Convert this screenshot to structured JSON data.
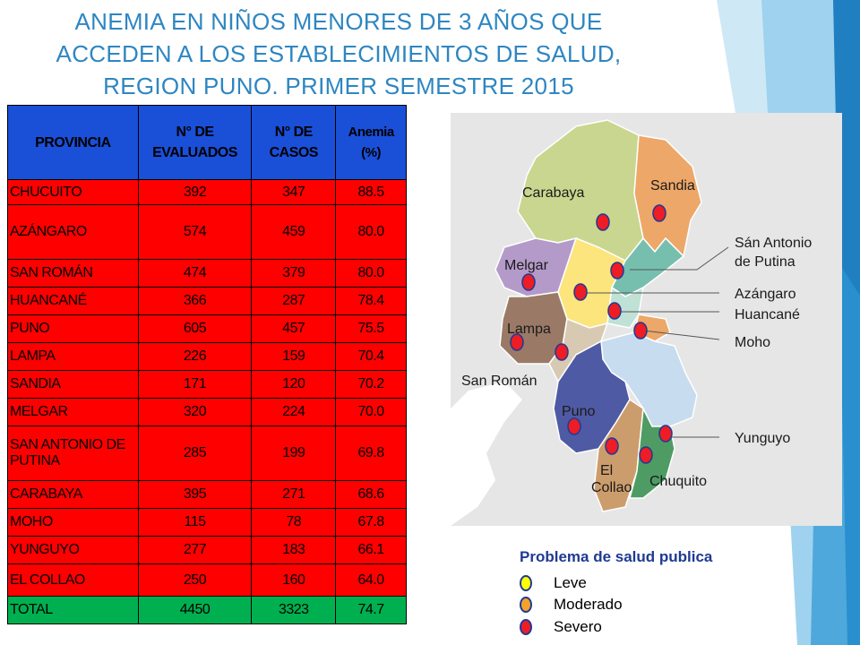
{
  "title": {
    "line1": "ANEMIA EN NIÑOS MENORES DE 3 AÑOS QUE",
    "line2": "ACCEDEN A LOS ESTABLECIMIENTOS DE SALUD,",
    "line3": "REGION PUNO. PRIMER SEMESTRE 2015"
  },
  "table": {
    "headers": [
      "PROVINCIA",
      "N° DE EVALUADOS",
      "N° DE CASOS",
      "Anemia (%)"
    ],
    "rows": [
      {
        "provincia": "CHUCUITO",
        "evaluados": "392",
        "casos": "347",
        "anemia": "88.5"
      },
      {
        "provincia": "AZÁNGARO",
        "evaluados": "574",
        "casos": "459",
        "anemia": "80.0"
      },
      {
        "provincia": "SAN ROMÁN",
        "evaluados": "474",
        "casos": "379",
        "anemia": "80.0"
      },
      {
        "provincia": "HUANCANÉ",
        "evaluados": "366",
        "casos": "287",
        "anemia": "78.4"
      },
      {
        "provincia": "PUNO",
        "evaluados": "605",
        "casos": "457",
        "anemia": "75.5"
      },
      {
        "provincia": "LAMPA",
        "evaluados": "226",
        "casos": "159",
        "anemia": "70.4"
      },
      {
        "provincia": "SANDIA",
        "evaluados": "171",
        "casos": "120",
        "anemia": "70.2"
      },
      {
        "provincia": "MELGAR",
        "evaluados": "320",
        "casos": "224",
        "anemia": "70.0"
      },
      {
        "provincia": "SAN ANTONIO DE PUTINA",
        "evaluados": "285",
        "casos": "199",
        "anemia": "69.8"
      },
      {
        "provincia": "CARABAYA",
        "evaluados": "395",
        "casos": "271",
        "anemia": "68.6"
      },
      {
        "provincia": "MOHO",
        "evaluados": "115",
        "casos": "78",
        "anemia": "67.8"
      },
      {
        "provincia": "YUNGUYO",
        "evaluados": "277",
        "casos": "183",
        "anemia": "66.1"
      },
      {
        "provincia": "EL COLLAO",
        "evaluados": "250",
        "casos": "160",
        "anemia": "64.0"
      }
    ],
    "total": {
      "provincia": "TOTAL",
      "evaluados": "4450",
      "casos": "3323",
      "anemia": "74.7"
    }
  },
  "map": {
    "labels": {
      "carabaya": "Carabaya",
      "sandia": "Sandia",
      "san_antonio_1": "Sán Antonio",
      "san_antonio_2": "de Putina",
      "melgar": "Melgar",
      "azangaro": "Azángaro",
      "huancane": "Huancané",
      "lampa": "Lampa",
      "moho": "Moho",
      "san_roman": "San Román",
      "puno": "Puno",
      "yunguyo": "Yunguyo",
      "el_collao_1": "El",
      "el_collao_2": "Collao",
      "chuquito": "Chuquito"
    },
    "colors": {
      "carabaya": "#c9d68f",
      "sandia": "#eda768",
      "melgar": "#b49ac9",
      "azangaro": "#fbe57c",
      "san_antonio": "#76bfae",
      "huancane": "#bfe1d6",
      "lampa": "#9a7a66",
      "san_roman": "#d8c9b2",
      "puno": "#4f5aa4",
      "lake": "#c7dcef",
      "el_collao": "#cc9d6c",
      "chucuito": "#4e9c63",
      "moho": "#eda768",
      "marker_severe": "#ee1c25",
      "marker_border": "#1f3a93"
    }
  },
  "legend": {
    "title": "Problema de salud publica",
    "items": [
      {
        "label": "Leve",
        "color": "#ffff00"
      },
      {
        "label": "Moderado",
        "color": "#f4a22a"
      },
      {
        "label": "Severo",
        "color": "#ee1c25"
      }
    ]
  }
}
